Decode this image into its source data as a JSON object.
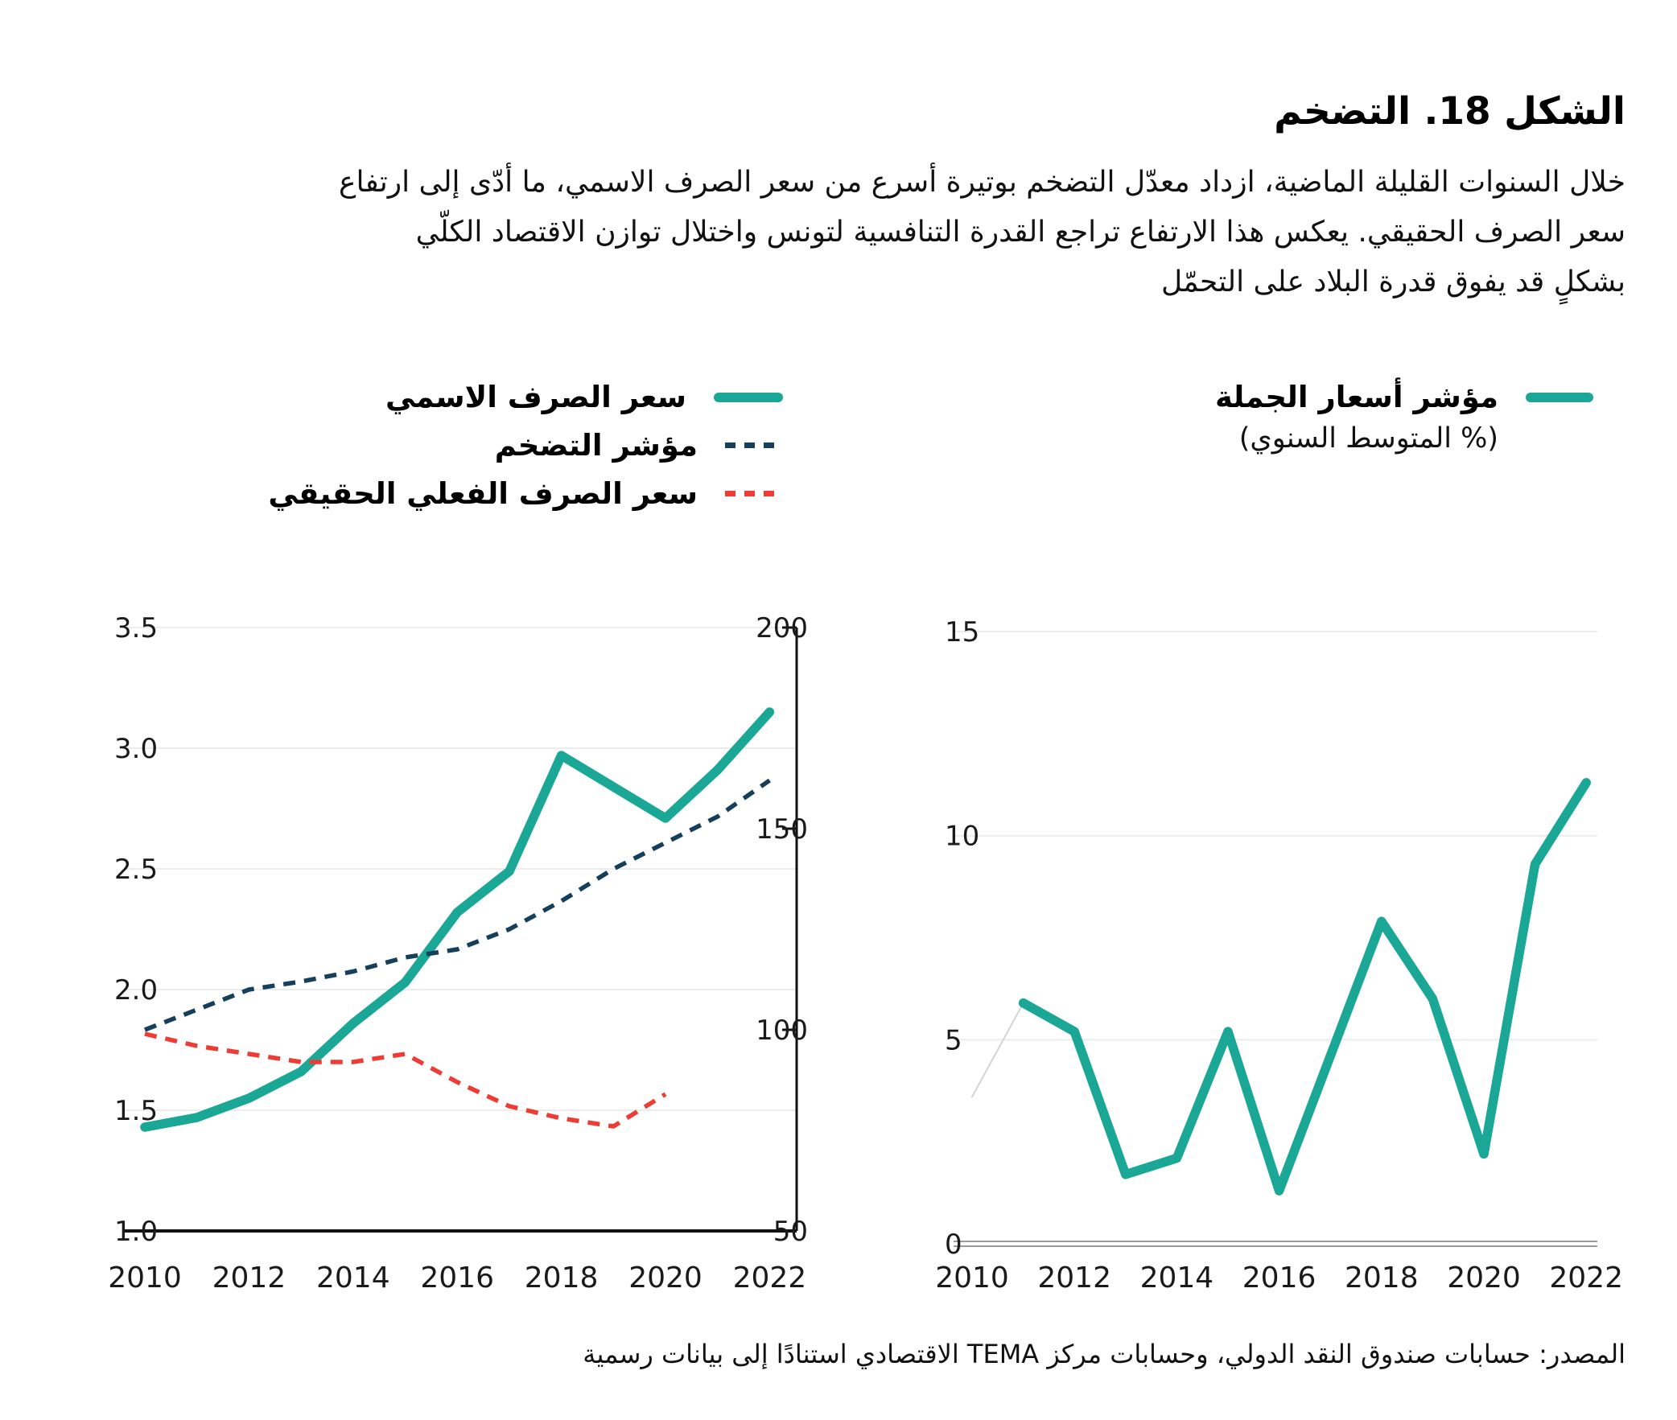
{
  "page": {
    "title": "الشكل 18. التضخم",
    "description_lines": [
      "خلال السنوات القليلة الماضية، ازداد معدّل التضخم بوتيرة أسرع من سعر الصرف الاسمي، ما أدّى إلى ارتفاع",
      "سعر الصرف الحقيقي. يعكس هذا الارتفاع تراجع القدرة التنافسية لتونس واختلال توازن الاقتصاد الكلّي",
      "بشكلٍ قد يفوق قدرة البلاد على التحمّل"
    ],
    "source": "المصدر: حسابات صندوق النقد الدولي،  وحسابات مركز TEMA الاقتصادي استنادًا إلى بيانات رسمية"
  },
  "colors": {
    "teal": "#1aa796",
    "navy": "#163f5c",
    "red": "#ee3b33",
    "grid": "#ececec",
    "axis": "#111111",
    "baseline_gray": "#9a9a9a",
    "faint": "#d4d4d4"
  },
  "chart_data": [
    {
      "type": "line",
      "position": "left-panel",
      "x": [
        2010,
        2011,
        2012,
        2013,
        2014,
        2015,
        2016,
        2017,
        2018,
        2019,
        2020,
        2021,
        2022
      ],
      "x_ticks": [
        2010,
        2012,
        2014,
        2016,
        2018,
        2020,
        2022
      ],
      "left_axis": {
        "min": 1.0,
        "max": 3.5,
        "tick_labels": [
          "3.5",
          "3.0",
          "2.5",
          "2.0",
          "1.5",
          "1.0"
        ],
        "grid": [
          1.5,
          2.0,
          2.5,
          3.0,
          3.5
        ]
      },
      "right_axis": {
        "min": 50,
        "max": 200,
        "ticks": [
          200,
          150,
          100,
          50
        ]
      },
      "legend_position": "top-right",
      "series": [
        {
          "name": "سعر الصرف الاسمي",
          "axis": "left",
          "style": "solid",
          "color": "teal",
          "values": [
            1.43,
            1.47,
            1.55,
            1.66,
            1.86,
            2.03,
            2.32,
            2.49,
            2.97,
            2.84,
            2.71,
            2.91,
            3.15
          ]
        },
        {
          "name": "مؤشر التضخم",
          "axis": "right",
          "style": "dashed",
          "color": "navy",
          "values": [
            100,
            105,
            110,
            112,
            114.5,
            118,
            120,
            125,
            132,
            140,
            146.5,
            153,
            162
          ]
        },
        {
          "name": "سعر الصرف الفعلي الحقيقي",
          "axis": "right",
          "style": "dashed",
          "color": "red",
          "values": [
            99,
            96,
            94,
            92,
            92,
            94,
            87,
            81,
            78,
            76,
            84
          ]
        }
      ]
    },
    {
      "type": "line",
      "position": "right-panel",
      "legend": {
        "label": "مؤشر أسعار الجملة",
        "subtitle": "(% المتوسط السنوي)"
      },
      "x": [
        2010,
        2011,
        2012,
        2013,
        2014,
        2015,
        2016,
        2017,
        2018,
        2019,
        2020,
        2021,
        2022
      ],
      "x_ticks": [
        2010,
        2012,
        2014,
        2016,
        2018,
        2020,
        2022
      ],
      "y_axis": {
        "min": 0,
        "max": 15,
        "ticks": [
          15,
          10,
          5,
          0
        ],
        "grid": [
          5,
          10,
          15
        ]
      },
      "series": [
        {
          "name": "مؤشر أسعار الجملة",
          "style": "solid",
          "color": "teal",
          "faint_first_segment": true,
          "values": [
            3.6,
            5.9,
            5.2,
            1.7,
            2.1,
            5.2,
            1.3,
            4.6,
            7.9,
            6.0,
            2.2,
            9.3,
            11.3
          ]
        }
      ]
    }
  ]
}
